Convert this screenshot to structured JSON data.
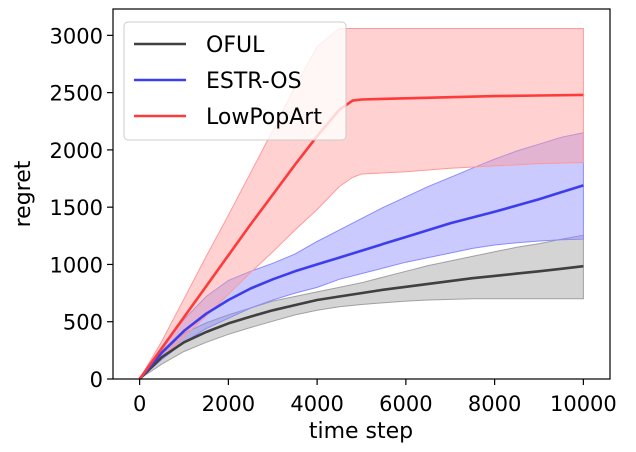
{
  "chart_data": {
    "type": "line",
    "title": "",
    "xlabel": "time step",
    "ylabel": "regret",
    "xlim": [
      -600,
      10600
    ],
    "ylim": [
      0,
      3230
    ],
    "xticks": [
      0,
      2000,
      4000,
      6000,
      8000,
      10000
    ],
    "yticks": [
      0,
      500,
      1000,
      1500,
      2000,
      2500,
      3000
    ],
    "grid": false,
    "legend_position": "top-left",
    "series": [
      {
        "name": "OFUL",
        "color": "#404040",
        "band_color": "#a0a0a0",
        "x": [
          0,
          500,
          1000,
          1500,
          2000,
          2500,
          3000,
          3500,
          4000,
          4500,
          5000,
          5500,
          6000,
          6500,
          7000,
          7500,
          8000,
          8500,
          9000,
          9500,
          10000
        ],
        "y": [
          0,
          190,
          320,
          410,
          485,
          545,
          600,
          645,
          690,
          720,
          750,
          780,
          805,
          830,
          855,
          880,
          900,
          920,
          940,
          962,
          985
        ],
        "lower": [
          0,
          130,
          240,
          320,
          390,
          450,
          505,
          560,
          600,
          630,
          650,
          665,
          680,
          690,
          695,
          700,
          700,
          700,
          700,
          700,
          700
        ],
        "upper": [
          0,
          250,
          400,
          490,
          560,
          620,
          680,
          720,
          760,
          800,
          840,
          890,
          940,
          990,
          1030,
          1070,
          1110,
          1150,
          1180,
          1220,
          1255
        ]
      },
      {
        "name": "ESTR-OS",
        "color": "#3d3dee",
        "band_color": "#8a8aff",
        "x": [
          0,
          500,
          1000,
          1500,
          2000,
          2500,
          3000,
          3500,
          4000,
          4500,
          5000,
          5500,
          6000,
          6500,
          7000,
          7500,
          8000,
          8500,
          9000,
          9500,
          10000
        ],
        "y": [
          0,
          230,
          420,
          570,
          690,
          790,
          870,
          940,
          1000,
          1060,
          1120,
          1180,
          1240,
          1300,
          1360,
          1410,
          1460,
          1515,
          1570,
          1630,
          1690
        ],
        "lower": [
          0,
          170,
          320,
          440,
          530,
          620,
          690,
          750,
          800,
          870,
          920,
          970,
          1020,
          1060,
          1100,
          1140,
          1170,
          1190,
          1205,
          1215,
          1220
        ],
        "upper": [
          0,
          280,
          520,
          720,
          860,
          940,
          1010,
          1090,
          1200,
          1300,
          1400,
          1500,
          1590,
          1680,
          1760,
          1840,
          1920,
          1990,
          2050,
          2110,
          2150
        ]
      },
      {
        "name": "LowPopArt",
        "color": "#ff3a3a",
        "band_color": "#ff9999",
        "x": [
          0,
          500,
          1000,
          1500,
          2000,
          2500,
          3000,
          3500,
          4000,
          4500,
          4800,
          5000,
          6000,
          7000,
          8000,
          9000,
          10000
        ],
        "y": [
          0,
          270,
          540,
          810,
          1080,
          1350,
          1610,
          1870,
          2120,
          2350,
          2430,
          2440,
          2450,
          2460,
          2470,
          2475,
          2480
        ],
        "lower": [
          0,
          180,
          370,
          550,
          740,
          930,
          1110,
          1300,
          1480,
          1680,
          1760,
          1790,
          1810,
          1840,
          1860,
          1880,
          1890
        ],
        "upper": [
          0,
          330,
          700,
          1070,
          1430,
          1800,
          2170,
          2550,
          2900,
          3060,
          3060,
          3060,
          3060,
          3060,
          3060,
          3060,
          3060
        ]
      }
    ]
  }
}
